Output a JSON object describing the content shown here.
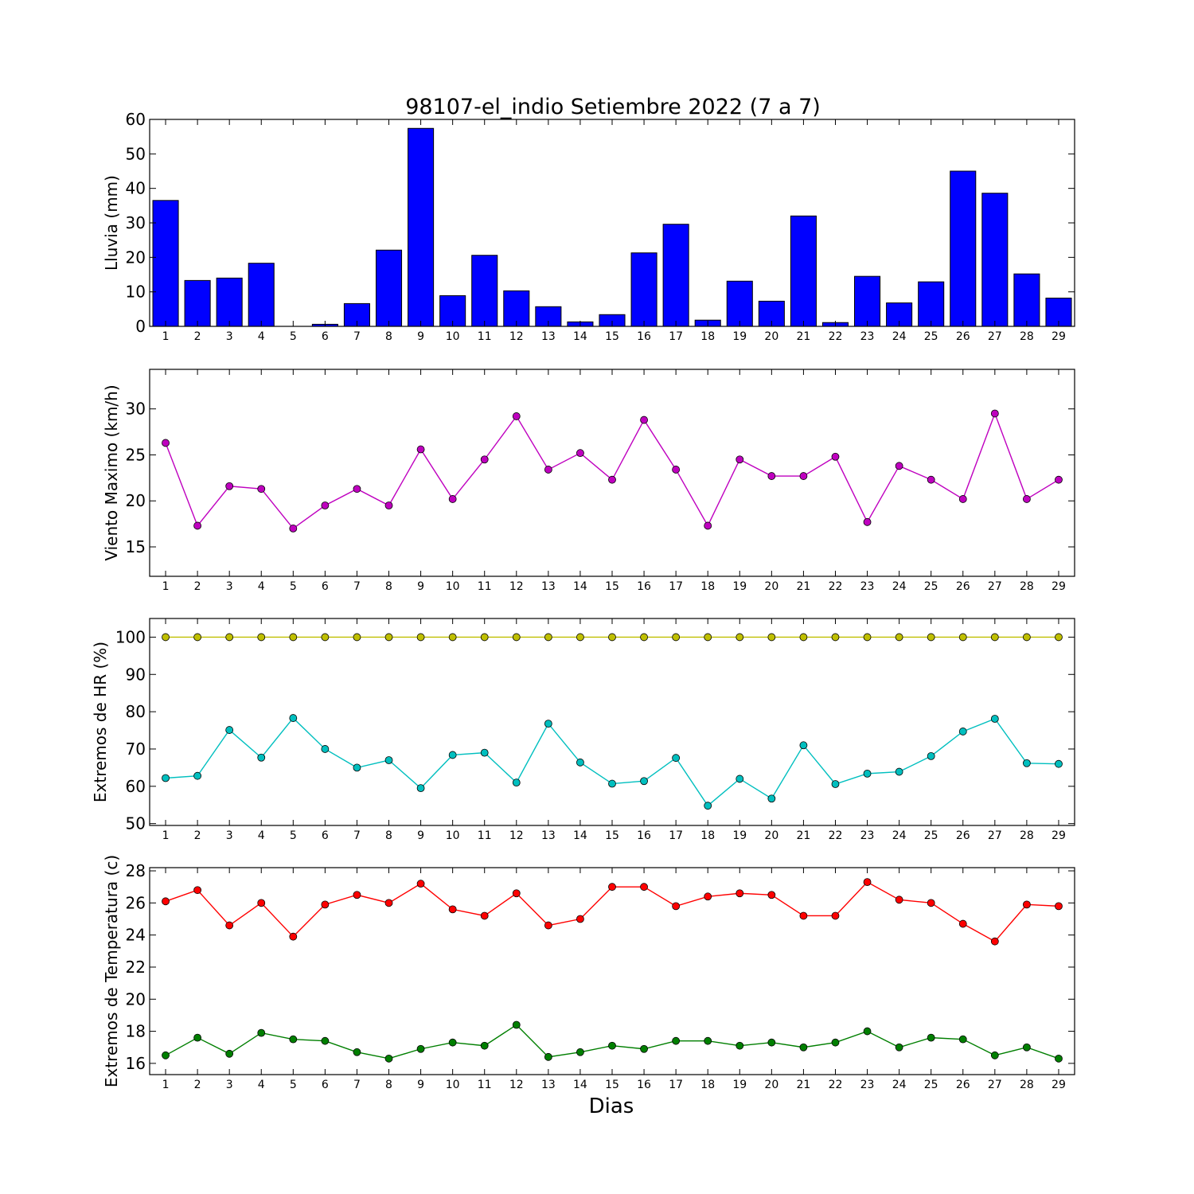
{
  "title": "98107-el_indio Setiembre 2022  (7 a 7)",
  "xlabel": "Dias",
  "chart_data": [
    {
      "type": "bar",
      "ylabel": "Lluvia (mm)",
      "ylim": [
        0,
        60
      ],
      "yticks": [
        0,
        10,
        20,
        30,
        40,
        50,
        60
      ],
      "categories": [
        1,
        2,
        3,
        4,
        5,
        6,
        7,
        8,
        9,
        10,
        11,
        12,
        13,
        14,
        15,
        16,
        17,
        18,
        19,
        20,
        21,
        22,
        23,
        24,
        25,
        26,
        27,
        28,
        29
      ],
      "series": [
        {
          "color": "#0000ff",
          "values": [
            36.5,
            13.3,
            14.0,
            18.3,
            0.0,
            0.6,
            6.6,
            22.1,
            57.4,
            8.9,
            20.6,
            10.3,
            5.7,
            1.3,
            3.4,
            21.3,
            29.6,
            1.8,
            13.1,
            7.3,
            32.0,
            1.1,
            14.5,
            6.8,
            12.9,
            45.0,
            38.6,
            15.2,
            8.2
          ]
        }
      ]
    },
    {
      "type": "line",
      "ylabel": "Viento Maximo (km/h)",
      "ylim": [
        11.8,
        34.3
      ],
      "yticks": [
        15,
        20,
        25,
        30
      ],
      "categories": [
        1,
        2,
        3,
        4,
        5,
        6,
        7,
        8,
        9,
        10,
        11,
        12,
        13,
        14,
        15,
        16,
        17,
        18,
        19,
        20,
        21,
        22,
        23,
        24,
        25,
        26,
        27,
        28,
        29
      ],
      "series": [
        {
          "color": "#bf00bf",
          "values": [
            26.3,
            17.3,
            21.6,
            21.3,
            17.0,
            19.5,
            21.3,
            19.5,
            25.6,
            20.2,
            24.5,
            29.2,
            23.4,
            25.2,
            22.3,
            28.8,
            23.4,
            17.3,
            24.5,
            22.7,
            22.7,
            24.8,
            17.7,
            23.8,
            22.3,
            20.2,
            29.5,
            20.2,
            22.3
          ]
        }
      ]
    },
    {
      "type": "line",
      "ylabel": "Extremos de HR (%)",
      "ylim": [
        49.5,
        105
      ],
      "yticks": [
        50,
        60,
        70,
        80,
        90,
        100
      ],
      "categories": [
        1,
        2,
        3,
        4,
        5,
        6,
        7,
        8,
        9,
        10,
        11,
        12,
        13,
        14,
        15,
        16,
        17,
        18,
        19,
        20,
        21,
        22,
        23,
        24,
        25,
        26,
        27,
        28,
        29
      ],
      "series": [
        {
          "color": "#bfbf00",
          "values": [
            100,
            100,
            100,
            100,
            100,
            100,
            100,
            100,
            100,
            100,
            100,
            100,
            100,
            100,
            100,
            100,
            100,
            100,
            100,
            100,
            100,
            100,
            100,
            100,
            100,
            100,
            100,
            100,
            100
          ]
        },
        {
          "color": "#00bfbf",
          "values": [
            62.2,
            62.8,
            75.1,
            67.7,
            78.3,
            70.0,
            65.0,
            67.0,
            59.5,
            68.4,
            69.0,
            61.0,
            76.8,
            66.4,
            60.7,
            61.4,
            67.6,
            54.8,
            62.0,
            56.7,
            71.0,
            60.6,
            63.4,
            63.9,
            68.1,
            74.7,
            78.1,
            66.2,
            66.0
          ]
        }
      ]
    },
    {
      "type": "line",
      "ylabel": "Extremos de Temperatura (c)",
      "ylim": [
        15.3,
        28.2
      ],
      "yticks": [
        16,
        18,
        20,
        22,
        24,
        26,
        28
      ],
      "categories": [
        1,
        2,
        3,
        4,
        5,
        6,
        7,
        8,
        9,
        10,
        11,
        12,
        13,
        14,
        15,
        16,
        17,
        18,
        19,
        20,
        21,
        22,
        23,
        24,
        25,
        26,
        27,
        28,
        29
      ],
      "series": [
        {
          "color": "#ff0000",
          "values": [
            26.1,
            26.8,
            24.6,
            26.0,
            23.9,
            25.9,
            26.5,
            26.0,
            27.2,
            25.6,
            25.2,
            26.6,
            24.6,
            25.0,
            27.0,
            27.0,
            25.8,
            26.4,
            26.6,
            26.5,
            25.2,
            25.2,
            27.3,
            26.2,
            26.0,
            24.7,
            23.6,
            25.9,
            25.8
          ]
        },
        {
          "color": "#007f00",
          "values": [
            16.5,
            17.6,
            16.6,
            17.9,
            17.5,
            17.4,
            16.7,
            16.3,
            16.9,
            17.3,
            17.1,
            18.4,
            16.4,
            16.7,
            17.1,
            16.9,
            17.4,
            17.4,
            17.1,
            17.3,
            17.0,
            17.3,
            18.0,
            17.0,
            17.6,
            17.5,
            16.5,
            17.0,
            16.3
          ]
        }
      ]
    }
  ]
}
